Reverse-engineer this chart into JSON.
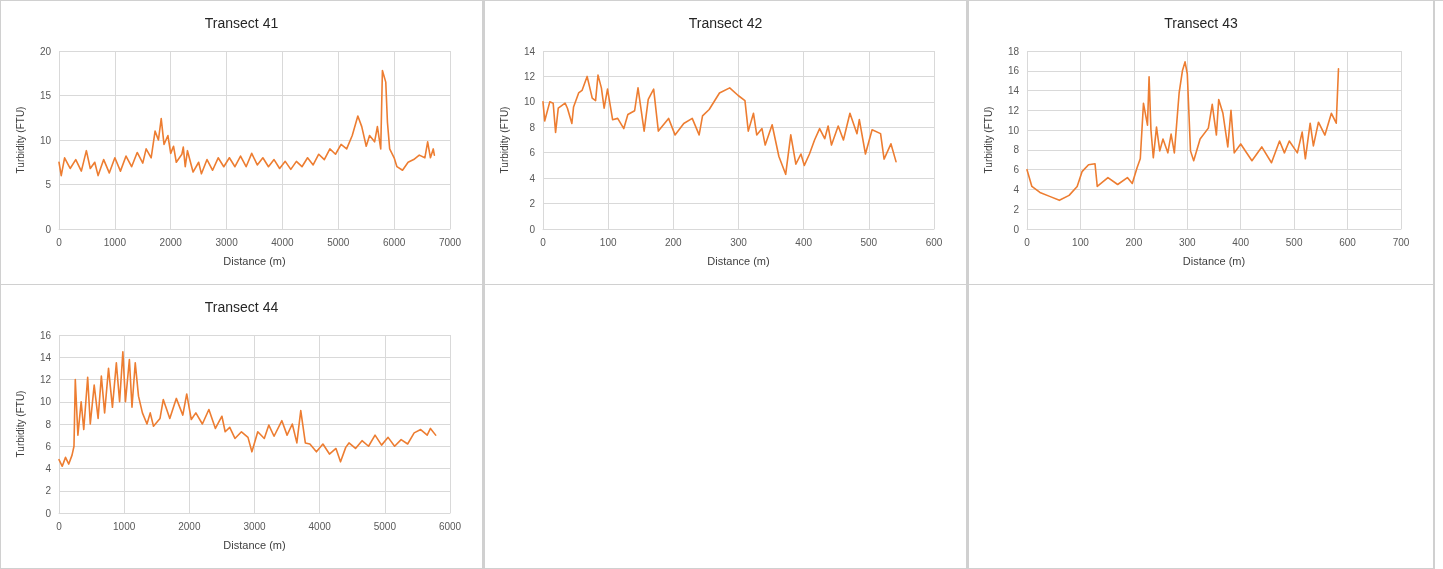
{
  "chart_data": [
    {
      "type": "line",
      "title": "Transect 41",
      "xlabel": "Distance (m)",
      "ylabel": "Turbidity (FTU)",
      "xlim": [
        0,
        7000
      ],
      "xticks": [
        0,
        1000,
        2000,
        3000,
        4000,
        5000,
        6000,
        7000
      ],
      "ylim": [
        0,
        20
      ],
      "yticks": [
        0,
        5,
        10,
        15,
        20
      ],
      "grid": true,
      "marker": "none",
      "line_style": "solid",
      "series": [
        {
          "color": "#ed7d31",
          "x": [
            0,
            40,
            100,
            200,
            300,
            400,
            490,
            560,
            640,
            700,
            800,
            900,
            1000,
            1100,
            1200,
            1300,
            1400,
            1500,
            1560,
            1650,
            1720,
            1780,
            1830,
            1880,
            1950,
            2000,
            2050,
            2100,
            2200,
            2225,
            2260,
            2300,
            2400,
            2500,
            2550,
            2650,
            2750,
            2850,
            2950,
            3050,
            3150,
            3250,
            3350,
            3450,
            3550,
            3650,
            3750,
            3850,
            3950,
            4050,
            4150,
            4250,
            4350,
            4450,
            4550,
            4650,
            4750,
            4850,
            4950,
            5050,
            5150,
            5250,
            5350,
            5420,
            5500,
            5560,
            5650,
            5700,
            5760,
            5790,
            5850,
            5880,
            5920,
            6000,
            6050,
            6150,
            6250,
            6350,
            6450,
            6550,
            6600,
            6650,
            6700,
            6720
          ],
          "values": [
            7.5,
            6.0,
            8.0,
            6.8,
            7.8,
            6.5,
            8.8,
            6.8,
            7.5,
            6.0,
            7.8,
            6.3,
            8.0,
            6.5,
            8.2,
            7.0,
            8.6,
            7.4,
            9.0,
            8.0,
            11.0,
            10.0,
            12.4,
            9.5,
            10.5,
            8.5,
            9.3,
            7.5,
            8.4,
            9.2,
            7.0,
            8.8,
            6.4,
            7.5,
            6.2,
            7.8,
            6.6,
            8.0,
            7.0,
            8.0,
            7.0,
            8.2,
            7.0,
            8.5,
            7.2,
            8.0,
            7.0,
            7.8,
            6.8,
            7.6,
            6.7,
            7.6,
            7.0,
            8.0,
            7.2,
            8.4,
            7.8,
            9.0,
            8.4,
            9.5,
            9.0,
            10.5,
            12.7,
            11.5,
            9.3,
            10.5,
            9.8,
            11.5,
            9.0,
            17.8,
            16.5,
            12.0,
            9.0,
            8.0,
            7.0,
            6.6,
            7.5,
            7.8,
            8.3,
            8.0,
            9.8,
            8.0,
            9.0,
            8.3
          ]
        }
      ]
    },
    {
      "type": "line",
      "title": "Transect 42",
      "xlabel": "Distance (m)",
      "ylabel": "Turbidity (FTU)",
      "xlim": [
        0,
        600
      ],
      "xticks": [
        0,
        100,
        200,
        300,
        400,
        500,
        600
      ],
      "ylim": [
        0,
        14
      ],
      "yticks": [
        0,
        2,
        4,
        6,
        8,
        10,
        12,
        14
      ],
      "grid": true,
      "marker": "none",
      "line_style": "solid",
      "series": [
        {
          "color": "#ed7d31",
          "x": [
            0,
            2.6,
            10.4,
            15.6,
            19.3,
            23.4,
            33.9,
            37.5,
            44.3,
            46.9,
            54.7,
            59.9,
            67.7,
            75.5,
            80.7,
            84.4,
            89.6,
            93.8,
            99,
            106.8,
            114.6,
            124,
            130.2,
            140.6,
            145.8,
            155.2,
            161.5,
            169.8,
            177,
            192.7,
            202.6,
            216,
            229,
            239.6,
            244.8,
            255,
            270.8,
            286.5,
            299.5,
            309.9,
            315,
            323,
            328,
            336,
            341,
            351.6,
            362,
            372.4,
            380.2,
            388,
            395.8,
            401,
            408.9,
            416.7,
            424.5,
            432.3,
            437.5,
            442.7,
            453,
            461,
            471,
            481.8,
            485.4,
            494.8,
            505,
            518,
            523.4,
            533.9,
            541.7
          ],
          "values": [
            10.0,
            8.5,
            10.0,
            9.9,
            7.6,
            9.5,
            9.9,
            9.5,
            8.3,
            9.6,
            10.7,
            10.9,
            12.0,
            10.3,
            10.1,
            12.1,
            11.1,
            9.5,
            11.0,
            8.6,
            8.7,
            7.9,
            9.0,
            9.3,
            11.1,
            7.7,
            10.2,
            11.0,
            7.7,
            8.7,
            7.4,
            8.3,
            8.7,
            7.4,
            8.9,
            9.4,
            10.7,
            11.1,
            10.5,
            10.1,
            7.7,
            9.1,
            7.4,
            7.9,
            6.6,
            8.2,
            5.7,
            4.3,
            7.4,
            5.1,
            5.9,
            5.0,
            5.9,
            7.0,
            7.9,
            7.1,
            8.1,
            6.6,
            8.1,
            7.0,
            9.1,
            7.5,
            8.6,
            5.9,
            7.8,
            7.5,
            5.5,
            6.7,
            5.3
          ]
        }
      ]
    },
    {
      "type": "line",
      "title": "Transect 43",
      "xlabel": "Distance (m)",
      "ylabel": "Turbidity (FTU)",
      "xlim": [
        0,
        700
      ],
      "xticks": [
        0,
        100,
        200,
        300,
        400,
        500,
        600,
        700
      ],
      "ylim": [
        0,
        18
      ],
      "yticks": [
        0,
        2,
        4,
        6,
        8,
        10,
        12,
        14,
        16,
        18
      ],
      "grid": true,
      "marker": "none",
      "line_style": "solid",
      "series": [
        {
          "color": "#ed7d31",
          "x": [
            0,
            9.1,
            24.2,
            42.4,
            60.6,
            78.8,
            93.9,
            103,
            115.2,
            127.3,
            131.5,
            151.5,
            169.7,
            187.9,
            197,
            206,
            212,
            218,
            225.5,
            228.5,
            232,
            236.4,
            242.4,
            248.5,
            254.5,
            263.6,
            269.7,
            275.8,
            284.8,
            290.9,
            295.8,
            300,
            306,
            312,
            324,
            339.4,
            346.7,
            354.5,
            358.8,
            366.7,
            375.8,
            381.8,
            387.9,
            400,
            421,
            439.4,
            457.6,
            472.7,
            481.8,
            490.9,
            506,
            515,
            521,
            530,
            536,
            545.5,
            557.6,
            569.7,
            578.8,
            583
          ],
          "values": [
            6.0,
            4.3,
            3.7,
            3.3,
            2.9,
            3.4,
            4.3,
            5.8,
            6.5,
            6.6,
            4.3,
            5.2,
            4.5,
            5.2,
            4.6,
            6.2,
            7.1,
            12.7,
            10.5,
            15.4,
            10.0,
            7.2,
            10.3,
            7.9,
            9.1,
            7.7,
            9.6,
            7.7,
            13.8,
            16.0,
            16.9,
            15.7,
            7.9,
            6.9,
            9.1,
            10.2,
            12.6,
            9.5,
            13.1,
            11.7,
            8.3,
            12.0,
            7.7,
            8.6,
            6.9,
            8.3,
            6.7,
            8.9,
            7.7,
            8.9,
            7.7,
            9.8,
            7.1,
            10.7,
            8.4,
            10.8,
            9.5,
            11.7,
            10.7,
            16.2
          ]
        }
      ]
    },
    {
      "type": "line",
      "title": "Transect 44",
      "xlabel": "Distance (m)",
      "ylabel": "Turbidity (FTU)",
      "xlim": [
        0,
        6000
      ],
      "xticks": [
        0,
        1000,
        2000,
        3000,
        4000,
        5000,
        6000
      ],
      "ylim": [
        0,
        16
      ],
      "yticks": [
        0,
        2,
        4,
        6,
        8,
        10,
        12,
        14,
        16
      ],
      "grid": true,
      "marker": "none",
      "line_style": "solid",
      "series": [
        {
          "color": "#ed7d31",
          "x": [
            0,
            50,
            100,
            150,
            200,
            230,
            250,
            290,
            340,
            380,
            440,
            480,
            540,
            600,
            650,
            700,
            760,
            820,
            880,
            930,
            980,
            1020,
            1080,
            1120,
            1170,
            1220,
            1280,
            1350,
            1400,
            1450,
            1550,
            1600,
            1700,
            1800,
            1900,
            1960,
            2030,
            2100,
            2200,
            2300,
            2400,
            2500,
            2550,
            2620,
            2700,
            2800,
            2900,
            2960,
            3050,
            3150,
            3220,
            3300,
            3420,
            3500,
            3580,
            3650,
            3710,
            3780,
            3850,
            3950,
            4050,
            4150,
            4250,
            4320,
            4400,
            4450,
            4550,
            4650,
            4750,
            4850,
            4950,
            5050,
            5150,
            5250,
            5350,
            5450,
            5550,
            5650,
            5700,
            5780
          ],
          "values": [
            4.8,
            4.2,
            5.0,
            4.4,
            5.2,
            6.0,
            12.0,
            7.0,
            10.0,
            7.5,
            12.2,
            8.0,
            11.5,
            8.5,
            12.3,
            9.0,
            13.0,
            9.5,
            13.5,
            10.0,
            14.5,
            10.0,
            13.8,
            9.5,
            13.5,
            10.5,
            9.0,
            8.0,
            9.0,
            7.8,
            8.5,
            10.2,
            8.5,
            10.3,
            8.8,
            10.7,
            8.4,
            9.0,
            8.0,
            9.3,
            7.6,
            8.7,
            7.3,
            7.7,
            6.7,
            7.3,
            6.8,
            5.5,
            7.3,
            6.7,
            7.9,
            6.9,
            8.3,
            7.0,
            8.0,
            6.3,
            9.2,
            6.3,
            6.2,
            5.5,
            6.2,
            5.3,
            5.8,
            4.6,
            5.9,
            6.3,
            5.8,
            6.5,
            6.0,
            7.0,
            6.1,
            6.8,
            6.0,
            6.6,
            6.2,
            7.2,
            7.5,
            7.0,
            7.6,
            7.0
          ]
        }
      ]
    }
  ]
}
